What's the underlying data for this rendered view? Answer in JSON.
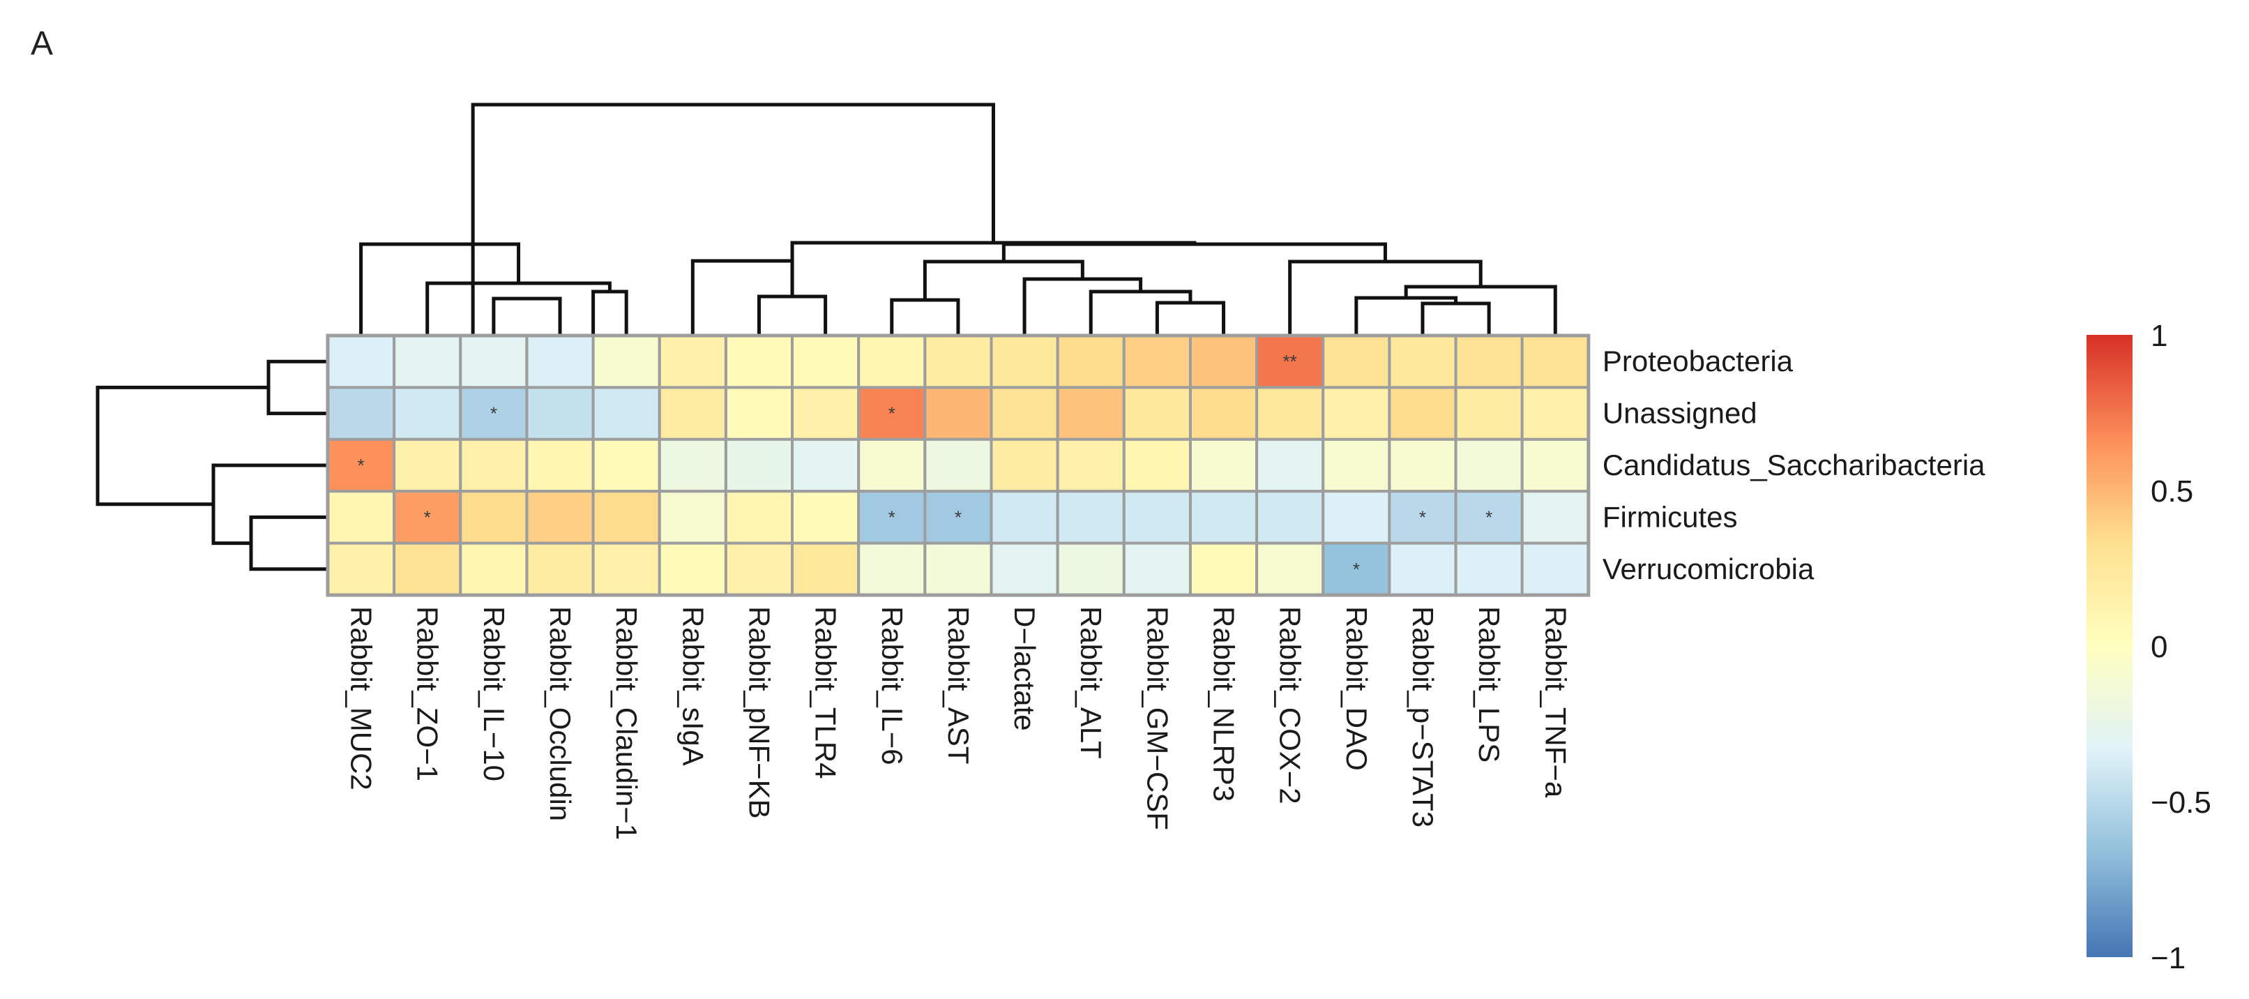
{
  "panel_label": "A",
  "chart_data": {
    "type": "heatmap",
    "columns": [
      "Rabbit_MUC2",
      "Rabbit_ZO−1",
      "Rabbit_IL−10",
      "Rabbit_Occludin",
      "Rabbit_Claudin−1",
      "Rabbit_sIgA",
      "Rabbit_pNF−KB",
      "Rabbit_TLR4",
      "Rabbit_IL−6",
      "Rabbit_AST",
      "D−lactate",
      "Rabbit_ALT",
      "Rabbit_GM−CSF",
      "Rabbit_NLRP3",
      "Rabbit_COX−2",
      "Rabbit_DAO",
      "Rabbit_p−STAT3",
      "Rabbit_LPS",
      "Rabbit_TNF−a"
    ],
    "rows": [
      "Proteobacteria",
      "Unassigned",
      "Candidatus_Saccharibacteria",
      "Firmicutes",
      "Verrucomicrobia"
    ],
    "values": [
      [
        -0.35,
        -0.3,
        -0.3,
        -0.35,
        -0.1,
        0.15,
        0.05,
        0.05,
        0.1,
        0.2,
        0.25,
        0.35,
        0.4,
        0.45,
        0.75,
        0.3,
        0.25,
        0.3,
        0.3
      ],
      [
        -0.5,
        -0.4,
        -0.55,
        -0.45,
        -0.4,
        0.2,
        0.05,
        0.15,
        0.7,
        0.5,
        0.3,
        0.45,
        0.25,
        0.35,
        0.25,
        0.15,
        0.35,
        0.2,
        0.15
      ],
      [
        0.65,
        0.15,
        0.15,
        0.1,
        0.05,
        -0.2,
        -0.25,
        -0.3,
        -0.1,
        -0.2,
        0.2,
        0.15,
        0.1,
        -0.1,
        -0.3,
        -0.1,
        -0.1,
        -0.15,
        -0.1
      ],
      [
        0.1,
        0.6,
        0.35,
        0.4,
        0.35,
        -0.1,
        0.1,
        0.05,
        -0.6,
        -0.6,
        -0.4,
        -0.4,
        -0.4,
        -0.4,
        -0.4,
        -0.35,
        -0.5,
        -0.5,
        -0.3
      ],
      [
        0.15,
        0.3,
        0.1,
        0.2,
        0.15,
        0.05,
        0.15,
        0.25,
        -0.15,
        -0.15,
        -0.3,
        -0.2,
        -0.3,
        0.05,
        -0.1,
        -0.65,
        -0.35,
        -0.35,
        -0.35
      ]
    ],
    "significance": [
      [
        "",
        "",
        "",
        "",
        "",
        "",
        "",
        "",
        "",
        "",
        "",
        "",
        "",
        "",
        "**",
        "",
        "",
        "",
        ""
      ],
      [
        "",
        "",
        "*",
        "",
        "",
        "",
        "",
        "",
        "*",
        "",
        "",
        "",
        "",
        "",
        "",
        "",
        "",
        "",
        ""
      ],
      [
        "*",
        "",
        "",
        "",
        "",
        "",
        "",
        "",
        "",
        "",
        "",
        "",
        "",
        "",
        "",
        "",
        "",
        "",
        ""
      ],
      [
        "",
        "*",
        "",
        "",
        "",
        "",
        "",
        "",
        "*",
        "*",
        "",
        "",
        "",
        "",
        "",
        "",
        "*",
        "*",
        ""
      ],
      [
        "",
        "",
        "",
        "",
        "",
        "",
        "",
        "",
        "",
        "",
        "",
        "",
        "",
        "",
        "",
        "*",
        "",
        "",
        ""
      ]
    ],
    "color_scale": {
      "min": -1,
      "max": 1,
      "stops": [
        "#4575b4",
        "#91bfdb",
        "#e0f3f8",
        "#ffffbf",
        "#fee090",
        "#fc8d59",
        "#d73027"
      ]
    },
    "legend_ticks": [
      {
        "value": 1,
        "label": "1"
      },
      {
        "value": 0.5,
        "label": "0.5"
      },
      {
        "value": 0,
        "label": "0"
      },
      {
        "value": -0.5,
        "label": "−0.5"
      },
      {
        "value": -1,
        "label": "−1"
      }
    ],
    "column_dendrogram": true,
    "row_dendrogram": true,
    "grid": true,
    "legend_position": "right"
  }
}
